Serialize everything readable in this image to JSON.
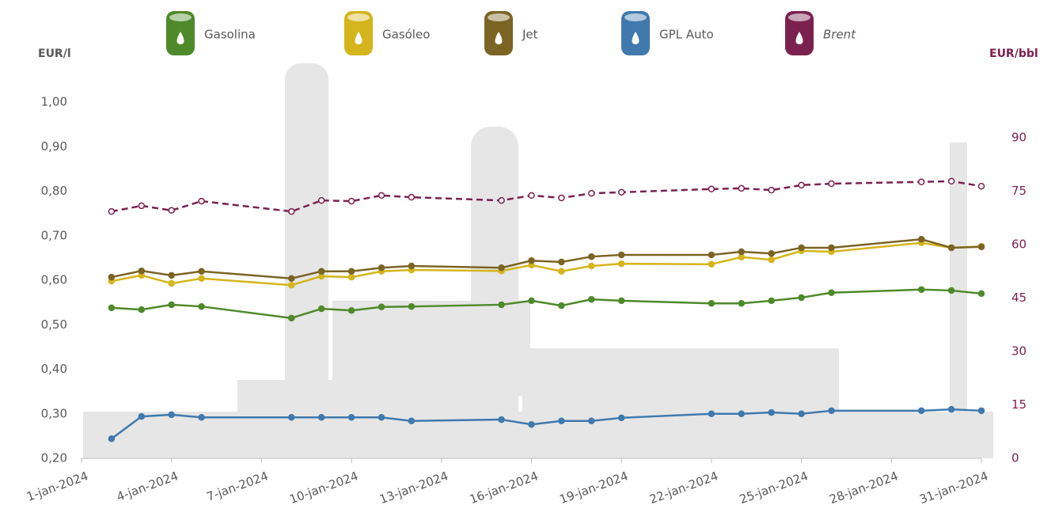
{
  "chart_data": {
    "type": "line",
    "y_label": "EUR/l",
    "y2_label": "EUR/bbl",
    "x": [
      "2-jan-2024",
      "3-jan-2024",
      "4-jan-2024",
      "5-jan-2024",
      "8-jan-2024",
      "9-jan-2024",
      "10-jan-2024",
      "11-jan-2024",
      "12-jan-2024",
      "15-jan-2024",
      "16-jan-2024",
      "17-jan-2024",
      "18-jan-2024",
      "19-jan-2024",
      "22-jan-2024",
      "23-jan-2024",
      "24-jan-2024",
      "25-jan-2024",
      "26-jan-2024",
      "29-jan-2024",
      "30-jan-2024",
      "31-jan-2024"
    ],
    "xlim": [
      "1-jan-2024",
      "31-jan-2024"
    ],
    "xticks": [
      "1-jan-2024",
      "4-jan-2024",
      "7-jan-2024",
      "10-jan-2024",
      "13-jan-2024",
      "16-jan-2024",
      "19-jan-2024",
      "22-jan-2024",
      "25-jan-2024",
      "28-jan-2024",
      "31-jan-2024"
    ],
    "ylim": [
      0.2,
      1.0
    ],
    "yticks": [
      {
        "value": 0.2,
        "label": "0,20"
      },
      {
        "value": 0.3,
        "label": "0,30"
      },
      {
        "value": 0.4,
        "label": "0,40"
      },
      {
        "value": 0.5,
        "label": "0,50"
      },
      {
        "value": 0.6,
        "label": "0,60"
      },
      {
        "value": 0.7,
        "label": "0,70"
      },
      {
        "value": 0.8,
        "label": "0,80"
      },
      {
        "value": 0.9,
        "label": "0,90"
      },
      {
        "value": 1.0,
        "label": "1,00"
      }
    ],
    "y2lim": [
      0,
      100
    ],
    "y2ticks": [
      0,
      15,
      30,
      45,
      60,
      75,
      90
    ],
    "y2_color": "#7b2150",
    "series": [
      {
        "name": "Gasolina",
        "color": "#4e8a2a",
        "values": [
          0.538,
          0.534,
          0.545,
          0.541,
          0.515,
          0.536,
          0.532,
          0.54,
          0.541,
          0.545,
          0.554,
          0.543,
          0.557,
          0.554,
          0.548,
          0.548,
          0.554,
          0.561,
          0.572,
          0.579,
          0.577,
          0.57
        ]
      },
      {
        "name": "Gasóleo",
        "color": "#d4b51c",
        "values": [
          0.598,
          0.611,
          0.593,
          0.604,
          0.589,
          0.609,
          0.607,
          0.62,
          0.623,
          0.621,
          0.634,
          0.62,
          0.632,
          0.637,
          0.636,
          0.652,
          0.646,
          0.666,
          0.664,
          0.684,
          0.673,
          0.676
        ]
      },
      {
        "name": "Jet",
        "color": "#7b6424",
        "values": [
          0.607,
          0.621,
          0.611,
          0.62,
          0.604,
          0.62,
          0.62,
          0.628,
          0.632,
          0.628,
          0.644,
          0.641,
          0.653,
          0.657,
          0.657,
          0.664,
          0.66,
          0.673,
          0.673,
          0.692,
          0.673,
          0.675
        ]
      },
      {
        "name": "GPL Auto",
        "color": "#3f79ad",
        "values": [
          0.244,
          0.294,
          0.298,
          0.292,
          0.292,
          0.292,
          0.292,
          0.292,
          0.284,
          0.287,
          0.276,
          0.284,
          0.284,
          0.291,
          0.3,
          0.3,
          0.303,
          0.3,
          0.307,
          0.307,
          0.31,
          0.307
        ]
      },
      {
        "name": "Brent",
        "color": "#7b2150",
        "axis": "y2",
        "dashed": true,
        "hollow": true,
        "italic": true,
        "values": [
          69.3,
          70.9,
          69.6,
          72.2,
          69.3,
          72.4,
          72.2,
          73.8,
          73.3,
          72.4,
          73.8,
          73.1,
          74.4,
          74.7,
          75.6,
          75.8,
          75.3,
          76.7,
          77.1,
          77.6,
          77.8,
          76.4
        ]
      }
    ]
  }
}
